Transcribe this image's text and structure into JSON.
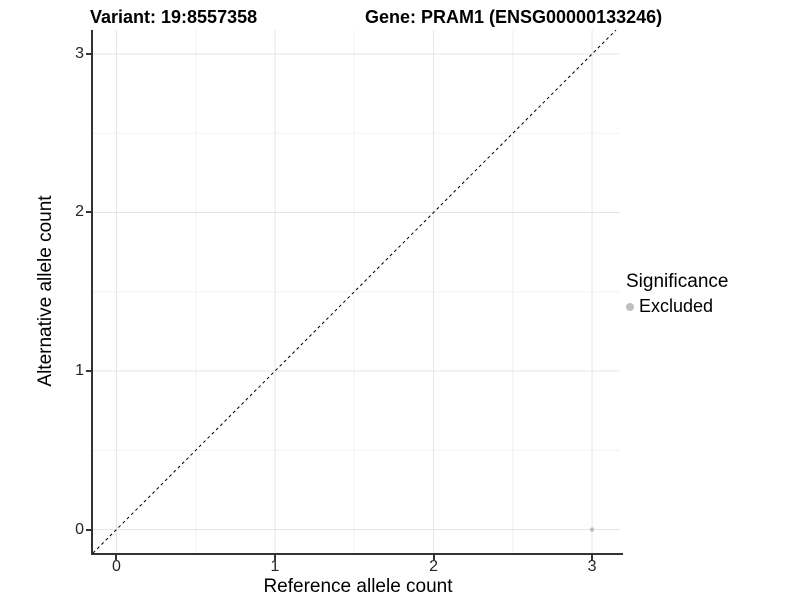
{
  "titles": {
    "variant": "Variant: 19:8557358",
    "gene": "Gene: PRAM1 (ENSG00000133246)"
  },
  "chart_data": {
    "type": "scatter",
    "xlabel": "Reference allele count",
    "ylabel": "Alternative allele count",
    "x_ticks": [
      0,
      1,
      2,
      3
    ],
    "y_ticks": [
      0,
      1,
      2,
      3
    ],
    "x_minor": [
      0.5,
      1.5,
      2.5
    ],
    "y_minor": [
      0.5,
      1.5,
      2.5
    ],
    "xlim": [
      -0.148,
      3.176
    ],
    "ylim": [
      -0.148,
      3.151
    ],
    "points": [
      {
        "x": 3,
        "y": 0,
        "significance": "Excluded"
      }
    ],
    "reference_line": {
      "equation": "y = x",
      "style": "dashed",
      "color": "#000000"
    },
    "grid": "on",
    "legend": {
      "title": "Significance",
      "position": "right",
      "items": [
        {
          "label": "Excluded",
          "color": "#bebebe"
        }
      ]
    },
    "colors": {
      "point": "#bebebe",
      "grid_major": "#e5e5e5",
      "grid_minor": "#f2f2f2",
      "axis": "#333333"
    }
  }
}
